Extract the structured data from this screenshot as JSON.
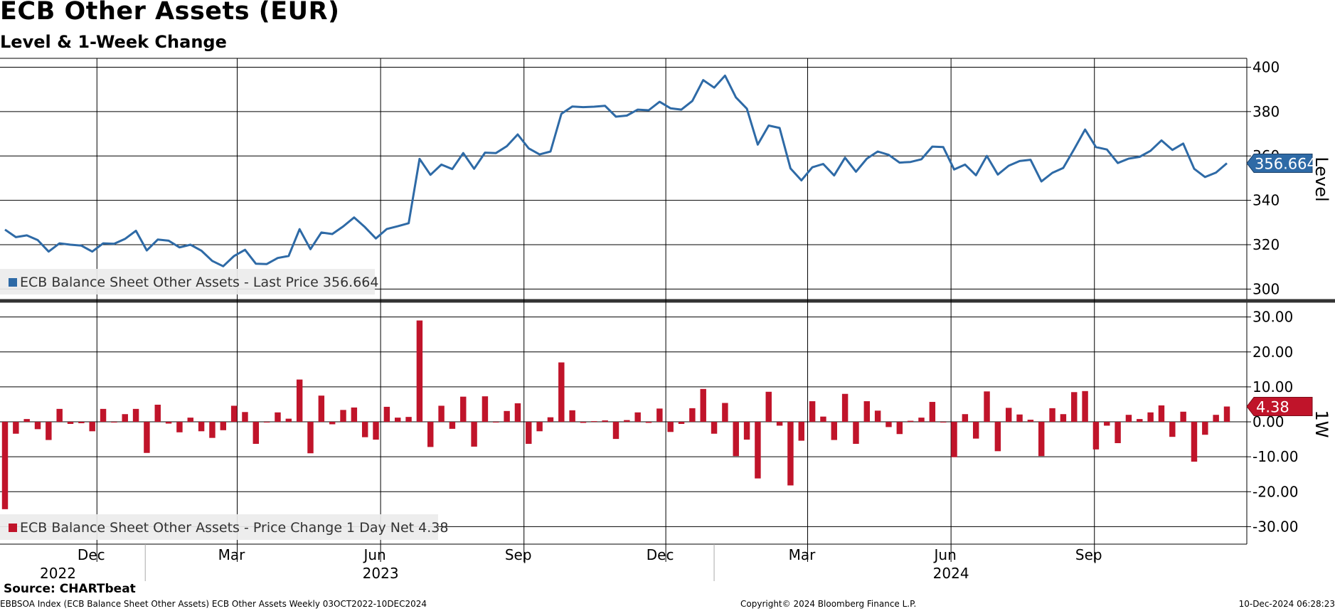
{
  "header": {
    "title": "ECB Other Assets (EUR)",
    "subtitle": "Level & 1-Week Change"
  },
  "footer": {
    "source": "Source: CHARTbeat",
    "left": "EBBSOA Index (ECB Balance Sheet Other Assets) ECB Other Assets  Weekly 03OCT2022-10DEC2024",
    "center": "Copyright© 2024 Bloomberg Finance L.P.",
    "right": "10-Dec-2024 06:28:23"
  },
  "colors": {
    "level_line": "#2e6aa6",
    "change_bars": "#c0142a",
    "grid": "#000000"
  },
  "chart_data": [
    {
      "type": "line",
      "panel": "top",
      "axis_label": "Level",
      "ylim": [
        295,
        404
      ],
      "y_ticks": [
        "300",
        "320",
        "340",
        "360",
        "380",
        "400"
      ],
      "y_tick_values": [
        300,
        320,
        340,
        360,
        380,
        400
      ],
      "last_value_label": "356.664",
      "legend": {
        "text": "ECB Balance Sheet Other Assets - Last Price 356.664",
        "position": "bottom-left"
      },
      "x_start": "2022-10-03",
      "x_step_days": 7,
      "series": [
        {
          "name": "ECB Balance Sheet Other Assets - Last Price",
          "values": [
            326.8,
            323.4,
            324.2,
            322.1,
            316.9,
            320.6,
            320.0,
            319.6,
            316.9,
            320.6,
            320.4,
            322.6,
            326.3,
            317.4,
            322.3,
            321.8,
            318.8,
            320.0,
            317.3,
            312.7,
            310.3,
            314.9,
            317.7,
            311.4,
            311.3,
            314.0,
            314.9,
            327.0,
            318.0,
            325.5,
            324.8,
            328.2,
            332.3,
            327.9,
            322.8,
            327.1,
            328.3,
            329.7,
            358.7,
            351.5,
            356.1,
            354.1,
            361.3,
            354.2,
            361.5,
            361.3,
            364.4,
            369.7,
            363.4,
            360.7,
            362.0,
            379.0,
            382.3,
            382.0,
            382.2,
            382.6,
            377.7,
            378.2,
            380.9,
            380.6,
            384.4,
            381.5,
            380.9,
            384.8,
            394.2,
            390.8,
            396.2,
            386.4,
            381.3,
            365.1,
            373.7,
            372.6,
            354.4,
            349.0,
            354.9,
            356.4,
            351.2,
            359.2,
            352.9,
            358.8,
            362.0,
            360.5,
            357.0,
            357.3,
            358.5,
            364.2,
            364.0,
            353.9,
            356.1,
            351.3,
            360.0,
            351.6,
            355.6,
            357.7,
            358.3,
            348.5,
            352.4,
            354.6,
            363.1,
            371.9,
            364.0,
            362.9,
            356.8,
            358.8,
            359.6,
            362.3,
            367.0,
            362.7,
            365.6,
            354.2,
            350.5,
            352.5,
            356.7
          ]
        }
      ]
    },
    {
      "type": "bar",
      "panel": "bottom",
      "axis_label": "1W",
      "ylim": [
        -35,
        34
      ],
      "y_ticks": [
        "30.00",
        "20.00",
        "10.00",
        "0.00",
        "-10.00",
        "-20.00",
        "-30.00"
      ],
      "y_tick_values": [
        30,
        20,
        10,
        0,
        -10,
        -20,
        -30
      ],
      "last_value_label": "4.38",
      "legend": {
        "text": "ECB Balance Sheet Other Assets - Price Change 1 Day Net 4.38",
        "position": "bottom-left"
      },
      "x_start": "2022-10-03",
      "x_step_days": 7,
      "series": [
        {
          "name": "ECB Balance Sheet Other Assets - Price Change 1 Day Net",
          "values": [
            -25.0,
            -3.4,
            0.8,
            -2.1,
            -5.2,
            3.7,
            -0.6,
            -0.4,
            -2.7,
            3.7,
            -0.2,
            2.2,
            3.7,
            -8.9,
            4.9,
            -0.5,
            -3.0,
            1.2,
            -2.7,
            -4.6,
            -2.4,
            4.6,
            2.8,
            -6.3,
            -0.1,
            2.7,
            0.9,
            12.1,
            -9.0,
            7.5,
            -0.7,
            3.4,
            4.1,
            -4.4,
            -5.1,
            4.3,
            1.2,
            1.4,
            29.0,
            -7.2,
            4.6,
            -2.0,
            7.2,
            -7.1,
            7.3,
            -0.2,
            3.1,
            5.3,
            -6.3,
            -2.7,
            1.3,
            17.0,
            3.3,
            -0.3,
            0.2,
            0.4,
            -4.9,
            0.5,
            2.7,
            -0.3,
            3.8,
            -2.9,
            -0.6,
            3.9,
            9.4,
            -3.4,
            5.4,
            -9.8,
            -5.1,
            -16.2,
            8.6,
            -1.1,
            -18.2,
            -5.4,
            5.9,
            1.5,
            -5.2,
            8.0,
            -6.3,
            5.9,
            3.2,
            -1.5,
            -3.5,
            0.3,
            1.2,
            5.7,
            -0.2,
            -10.1,
            2.2,
            -4.8,
            8.7,
            -8.4,
            4.0,
            2.1,
            0.6,
            -9.8,
            3.9,
            2.2,
            8.5,
            8.8,
            -7.9,
            -1.1,
            -6.1,
            2.0,
            0.8,
            2.7,
            4.7,
            -4.3,
            2.9,
            -11.4,
            -3.7,
            2.0,
            4.38
          ]
        }
      ]
    }
  ],
  "x_axis": {
    "month_ticks": [
      {
        "label": "Dec",
        "date": "2022-12-01"
      },
      {
        "label": "Mar",
        "date": "2023-03-01"
      },
      {
        "label": "Jun",
        "date": "2023-06-01"
      },
      {
        "label": "Sep",
        "date": "2023-09-01"
      },
      {
        "label": "Dec",
        "date": "2023-12-01"
      },
      {
        "label": "Mar",
        "date": "2024-03-01"
      },
      {
        "label": "Jun",
        "date": "2024-06-01"
      },
      {
        "label": "Sep",
        "date": "2024-09-01"
      }
    ],
    "year_labels": [
      {
        "label": "2022",
        "date": "2022-11-06"
      },
      {
        "label": "2023",
        "date": "2023-06-01"
      },
      {
        "label": "2024",
        "date": "2024-06-01"
      }
    ],
    "year_dividers": [
      "2023-01-01",
      "2024-01-01"
    ]
  }
}
